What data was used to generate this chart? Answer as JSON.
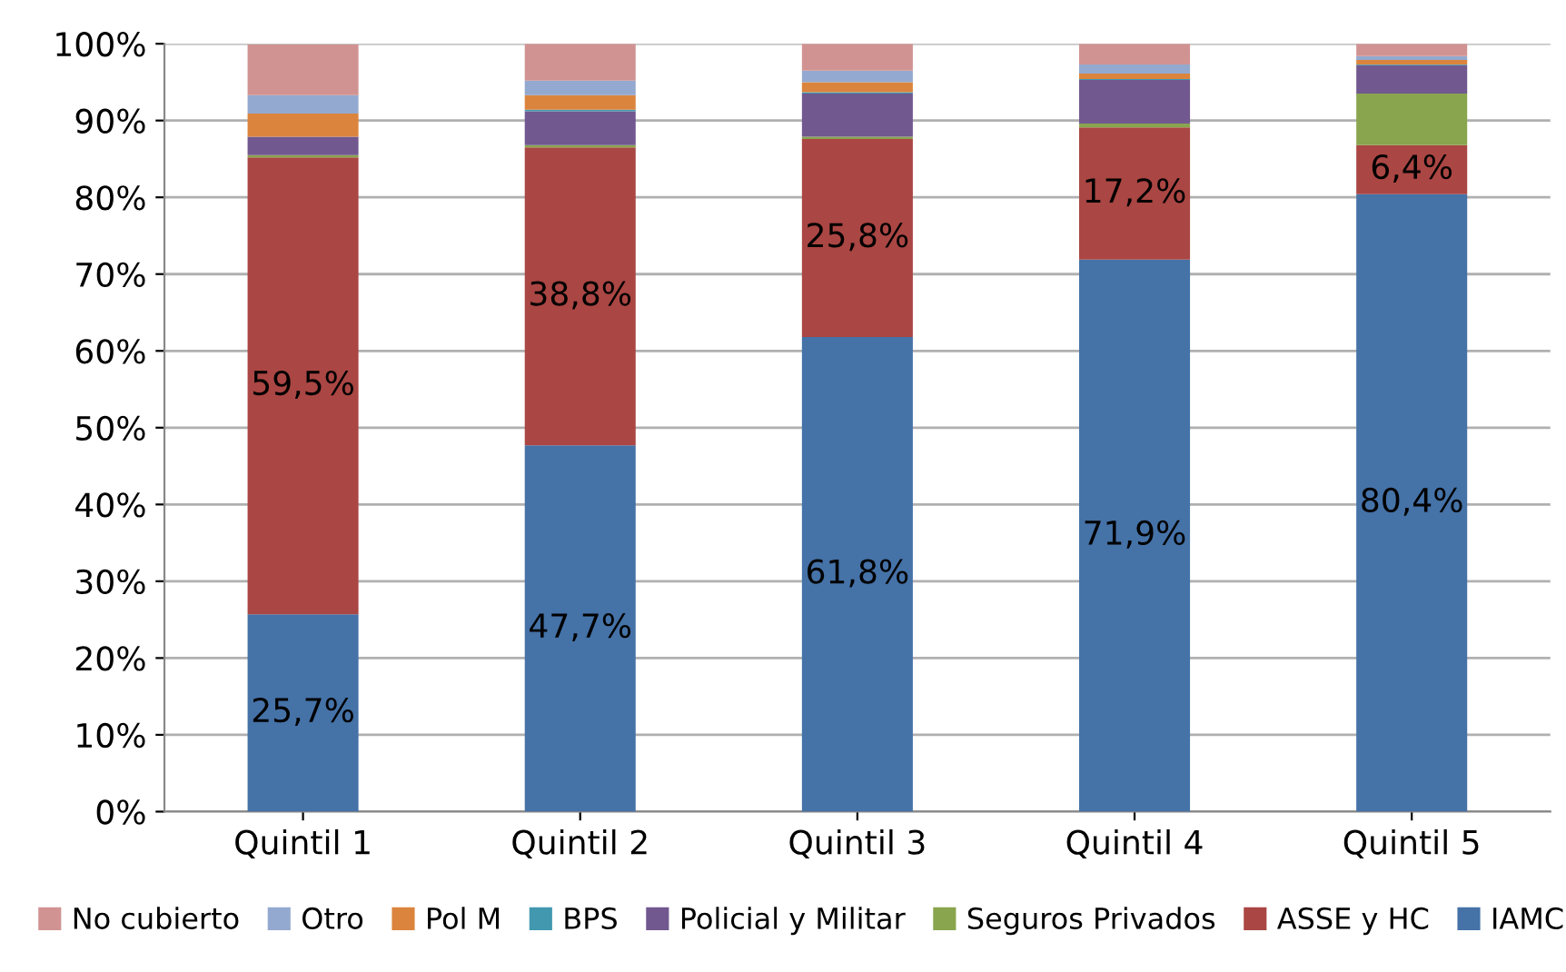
{
  "chart_data": {
    "type": "bar",
    "stacked": true,
    "categories": [
      "Quintil 1",
      "Quintil 2",
      "Quintil 3",
      "Quintil 4",
      "Quintil 5"
    ],
    "series": [
      {
        "name": "IAMC",
        "color": "#4572a7",
        "values": [
          25.7,
          47.7,
          61.8,
          71.9,
          80.4
        ],
        "value_labels": [
          "25,7%",
          "47,7%",
          "61,8%",
          "71,9%",
          "80,4%"
        ]
      },
      {
        "name": "ASSE y HC",
        "color": "#aa4643",
        "values": [
          59.5,
          38.8,
          25.8,
          17.2,
          6.4
        ],
        "value_labels": [
          "59,5%",
          "38,8%",
          "25,8%",
          "17,2%",
          "6,4%"
        ]
      },
      {
        "name": "Seguros Privados",
        "color": "#89a54e",
        "values": [
          0.3,
          0.3,
          0.3,
          0.5,
          6.7
        ]
      },
      {
        "name": "Policial y Militar",
        "color": "#71588f",
        "values": [
          2.4,
          4.4,
          5.6,
          5.7,
          3.7
        ]
      },
      {
        "name": "BPS",
        "color": "#4198af",
        "values": [
          null,
          0.2,
          0.2,
          0.1,
          0.1
        ]
      },
      {
        "name": "Pol M",
        "color": "#db843d",
        "values": [
          3.0,
          1.9,
          1.3,
          0.7,
          0.6
        ]
      },
      {
        "name": "Otro",
        "color": "#93a9cf",
        "values": [
          2.4,
          1.9,
          1.5,
          1.2,
          0.5
        ]
      },
      {
        "name": "No cubierto",
        "color": "#d19392",
        "values": [
          6.6,
          4.8,
          3.5,
          2.7,
          1.6
        ]
      }
    ],
    "ylim": [
      0,
      100
    ],
    "yticks": [
      {
        "value": 0,
        "label": "0%"
      },
      {
        "value": 10,
        "label": "10%"
      },
      {
        "value": 20,
        "label": "20%"
      },
      {
        "value": 30,
        "label": "30%"
      },
      {
        "value": 40,
        "label": "40%"
      },
      {
        "value": 50,
        "label": "50%"
      },
      {
        "value": 60,
        "label": "60%"
      },
      {
        "value": 70,
        "label": "70%"
      },
      {
        "value": 80,
        "label": "80%"
      },
      {
        "value": 90,
        "label": "90%"
      },
      {
        "value": 100,
        "label": "100%"
      }
    ],
    "grid": "y",
    "legend": "bottom"
  }
}
